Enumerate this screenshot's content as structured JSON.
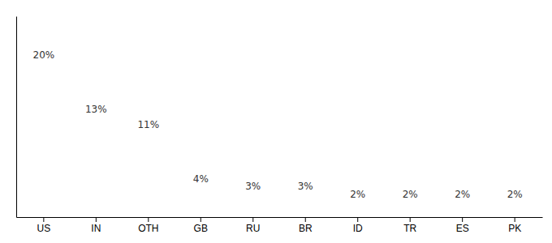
{
  "chart_data": {
    "type": "bar",
    "categories": [
      "US",
      "IN",
      "OTH",
      "GB",
      "RU",
      "BR",
      "ID",
      "TR",
      "ES",
      "PK"
    ],
    "values": [
      20,
      13,
      11,
      4,
      3,
      3,
      2,
      2,
      2,
      2
    ],
    "value_labels": [
      "20%",
      "13%",
      "11%",
      "4%",
      "3%",
      "3%",
      "2%",
      "2%",
      "2%",
      "2%"
    ],
    "colors": [
      "#4a72d1",
      "#2ec02e",
      "#ffa500",
      "#87ceeb",
      "#b05a1a",
      "#2d6b2d",
      "#ff1493",
      "#ff80c0",
      "#f08080",
      "#f0ead6"
    ],
    "ylim": [
      0,
      26
    ],
    "data_labels": true,
    "tick_labels": "x",
    "grid": false
  }
}
